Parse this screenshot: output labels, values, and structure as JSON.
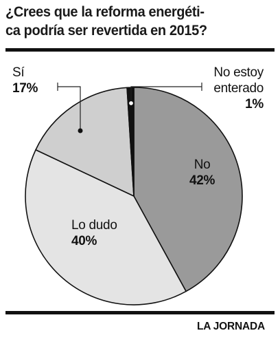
{
  "chart_data": {
    "type": "pie",
    "title_lines": [
      "¿Crees que la reforma energéti-",
      "ca podría ser revertida en 2015?"
    ],
    "slices": [
      {
        "label": "No",
        "value": 42,
        "value_label": "42%",
        "color": "#9a9a9a"
      },
      {
        "label": "Lo dudo",
        "value": 40,
        "value_label": "40%",
        "color": "#e4e4e4"
      },
      {
        "label": "Sí",
        "value": 17,
        "value_label": "17%",
        "color": "#cfcfcf"
      },
      {
        "label_lines": [
          "No estoy",
          "enterado"
        ],
        "value": 1,
        "value_label": "1%",
        "color": "#111111"
      }
    ],
    "source": "LA JORNADA"
  }
}
